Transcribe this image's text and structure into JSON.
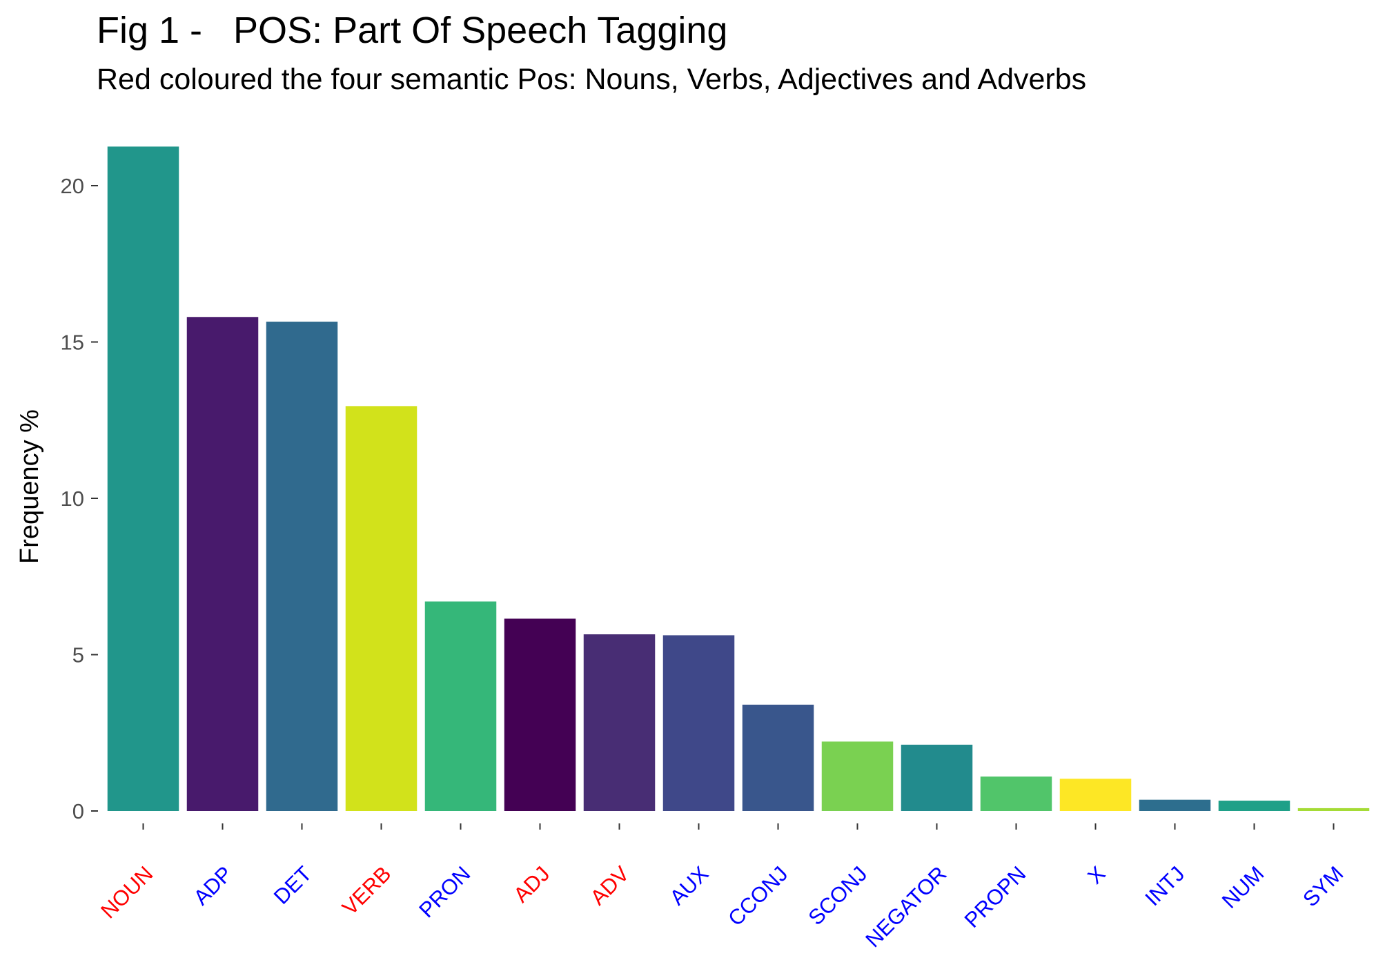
{
  "chart_data": {
    "type": "bar",
    "title": "Fig 1 -   POS: Part Of Speech Tagging",
    "subtitle": "Red coloured the four semantic Pos: Nouns, Verbs, Adjectives and Adverbs",
    "xlabel": "",
    "ylabel": "Frequency %",
    "ylim": [
      0,
      21.5
    ],
    "yticks": [
      "0",
      "5",
      "10",
      "15",
      "20"
    ],
    "grid": false,
    "legend": "none",
    "categories": [
      "NOUN",
      "ADP",
      "DET",
      "VERB",
      "PRON",
      "ADJ",
      "ADV",
      "AUX",
      "CCONJ",
      "SCONJ",
      "NEGATOR",
      "PROPN",
      "X",
      "INTJ",
      "NUM",
      "SYM"
    ],
    "values": [
      21.25,
      15.8,
      15.65,
      12.95,
      6.7,
      6.15,
      5.65,
      5.62,
      3.4,
      2.22,
      2.12,
      1.1,
      1.03,
      0.36,
      0.33,
      0.09
    ],
    "bar_colors": [
      "#21968B",
      "#481A6C",
      "#306A8E",
      "#D2E21B",
      "#35B779",
      "#440154",
      "#482D74",
      "#3F4889",
      "#39568C",
      "#7AD151",
      "#228B8D",
      "#51C56A",
      "#FDE725",
      "#2D6E8E",
      "#1FA088",
      "#A5DB36"
    ],
    "label_colors": [
      "#FF0000",
      "#0000FF",
      "#0000FF",
      "#FF0000",
      "#0000FF",
      "#FF0000",
      "#FF0000",
      "#0000FF",
      "#0000FF",
      "#0000FF",
      "#0000FF",
      "#0000FF",
      "#0000FF",
      "#0000FF",
      "#0000FF",
      "#0000FF"
    ]
  }
}
